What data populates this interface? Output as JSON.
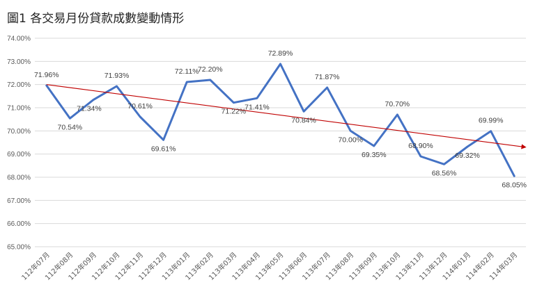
{
  "chart_data": {
    "type": "line",
    "title": "圖1 各交易月份貸款成數變動情形",
    "categories": [
      "112年07月",
      "112年08月",
      "112年09月",
      "112年10月",
      "112年11月",
      "112年12月",
      "113年01月",
      "113年02月",
      "113年03月",
      "113年04月",
      "113年05月",
      "113年06月",
      "113年07月",
      "113年08月",
      "113年09月",
      "113年10月",
      "113年11月",
      "113年12月",
      "114年01月",
      "114年02月",
      "114年03月"
    ],
    "series": [
      {
        "values": [
          71.96,
          70.54,
          71.34,
          71.93,
          70.61,
          69.61,
          72.11,
          72.2,
          71.22,
          71.41,
          72.89,
          70.84,
          71.87,
          70.0,
          69.35,
          70.7,
          68.9,
          68.56,
          69.32,
          69.99,
          68.05
        ],
        "color": "#4472C4"
      }
    ],
    "data_labels": [
      "71.96%",
      "70.54%",
      "71.34%",
      "71.93%",
      "70.61%",
      "69.61%",
      "72.11%",
      "72.20%",
      "71.22%",
      "71.41%",
      "72.89%",
      "70.84%",
      "71.87%",
      "70.00%",
      "69.35%",
      "70.70%",
      "68.90%",
      "68.56%",
      "69.32%",
      "69.99%",
      "68.05%"
    ],
    "trendline": {
      "type": "linear",
      "start": 72.0,
      "end": 69.3,
      "color": "#C00000"
    },
    "ylim": [
      65,
      74
    ],
    "yticks": [
      "65.00%",
      "66.00%",
      "67.00%",
      "68.00%",
      "69.00%",
      "70.00%",
      "71.00%",
      "72.00%",
      "73.00%",
      "74.00%"
    ],
    "grid": true,
    "legend": "none",
    "xlabel": "",
    "ylabel": ""
  }
}
